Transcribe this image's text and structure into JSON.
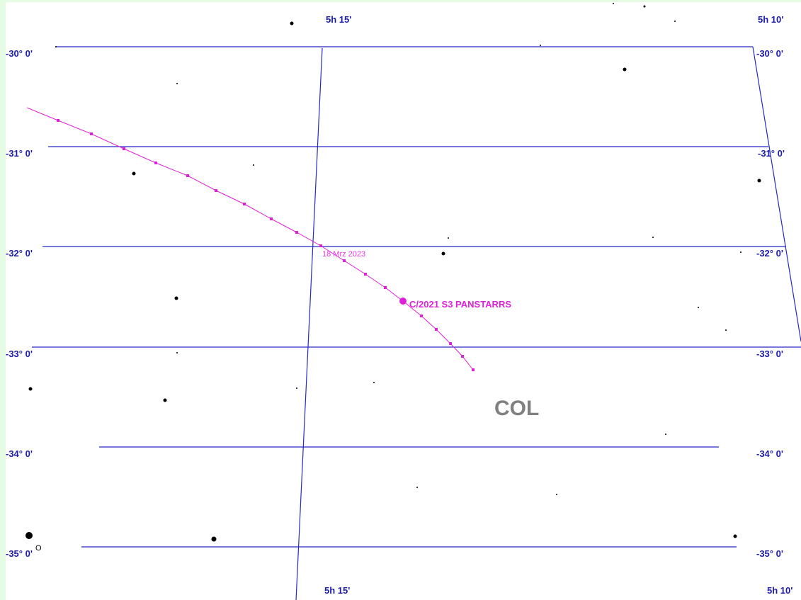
{
  "ra_labels_top": [
    "5h 15'",
    "5h 10'"
  ],
  "ra_labels_bottom": [
    "5h 15'",
    "5h 10'"
  ],
  "dec_labels_left": [
    "-30° 0'",
    "-31° 0'",
    "-32° 0'",
    "-33° 0'",
    "-34° 0'",
    "-35° 0'"
  ],
  "dec_labels_right": [
    "-30° 0'",
    "-31° 0'",
    "-32° 0'",
    "-33° 0'",
    "-34° 0'",
    "-35° 0'"
  ],
  "comet": {
    "date_label": "18 Mrz 2023",
    "name": "C/2021 S3 PANSTARRS"
  },
  "constellation": "COL",
  "star_label": "O"
}
